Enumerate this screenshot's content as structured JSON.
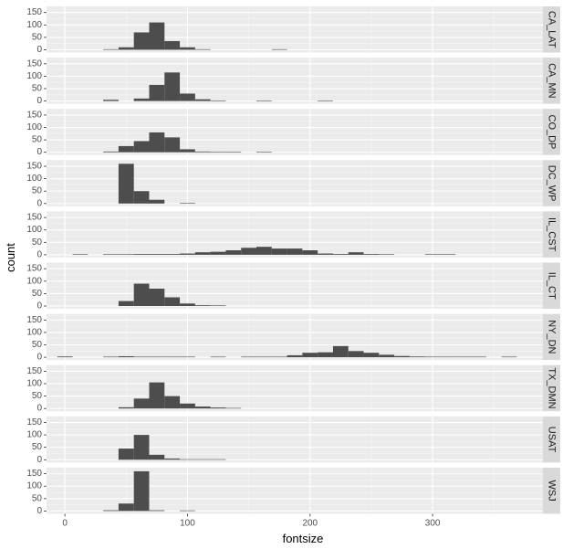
{
  "chart_data": {
    "type": "bar",
    "facet": "wrap-rows",
    "xlabel": "fontsize",
    "ylabel": "count",
    "xlim": [
      -15,
      390
    ],
    "ylim": [
      0,
      160
    ],
    "x_ticks": [
      0,
      100,
      200,
      300
    ],
    "y_ticks": [
      0,
      50,
      100,
      150
    ],
    "bin_width": 12.5,
    "grid": true,
    "bar_color": "#4d4d4d",
    "panel_background": "#ebebeb",
    "strip_background": "#d9d9d9",
    "panels": [
      {
        "strip": "CA_LAT",
        "bins": [
          {
            "x": 37.5,
            "value": 2
          },
          {
            "x": 50,
            "value": 10
          },
          {
            "x": 62.5,
            "value": 70
          },
          {
            "x": 75,
            "value": 110
          },
          {
            "x": 87.5,
            "value": 35
          },
          {
            "x": 100,
            "value": 10
          },
          {
            "x": 112.5,
            "value": 2
          },
          {
            "x": 175,
            "value": 1
          }
        ]
      },
      {
        "strip": "CA_MN",
        "bins": [
          {
            "x": 37.5,
            "value": 5
          },
          {
            "x": 62.5,
            "value": 10
          },
          {
            "x": 75,
            "value": 65
          },
          {
            "x": 87.5,
            "value": 115
          },
          {
            "x": 100,
            "value": 30
          },
          {
            "x": 112.5,
            "value": 7
          },
          {
            "x": 125,
            "value": 2
          },
          {
            "x": 162.5,
            "value": 1
          },
          {
            "x": 212.5,
            "value": 1
          }
        ]
      },
      {
        "strip": "CO_DP",
        "bins": [
          {
            "x": 37.5,
            "value": 3
          },
          {
            "x": 50,
            "value": 25
          },
          {
            "x": 62.5,
            "value": 45
          },
          {
            "x": 75,
            "value": 80
          },
          {
            "x": 87.5,
            "value": 60
          },
          {
            "x": 100,
            "value": 12
          },
          {
            "x": 112.5,
            "value": 3
          },
          {
            "x": 125,
            "value": 2
          },
          {
            "x": 137.5,
            "value": 1
          },
          {
            "x": 162.5,
            "value": 1
          }
        ]
      },
      {
        "strip": "DC_WP",
        "bins": [
          {
            "x": 50,
            "value": 160
          },
          {
            "x": 62.5,
            "value": 50
          },
          {
            "x": 75,
            "value": 15
          },
          {
            "x": 100,
            "value": 1
          }
        ]
      },
      {
        "strip": "IL_CST",
        "bins": [
          {
            "x": 12.5,
            "value": 1
          },
          {
            "x": 37.5,
            "value": 2
          },
          {
            "x": 50,
            "value": 2
          },
          {
            "x": 62.5,
            "value": 3
          },
          {
            "x": 75,
            "value": 3
          },
          {
            "x": 87.5,
            "value": 3
          },
          {
            "x": 100,
            "value": 5
          },
          {
            "x": 112.5,
            "value": 10
          },
          {
            "x": 125,
            "value": 12
          },
          {
            "x": 137.5,
            "value": 18
          },
          {
            "x": 150,
            "value": 28
          },
          {
            "x": 162.5,
            "value": 32
          },
          {
            "x": 175,
            "value": 25
          },
          {
            "x": 187.5,
            "value": 25
          },
          {
            "x": 200,
            "value": 18
          },
          {
            "x": 212.5,
            "value": 5
          },
          {
            "x": 225,
            "value": 3
          },
          {
            "x": 237.5,
            "value": 10
          },
          {
            "x": 250,
            "value": 3
          },
          {
            "x": 262.5,
            "value": 2
          },
          {
            "x": 300,
            "value": 1
          },
          {
            "x": 312.5,
            "value": 1
          }
        ]
      },
      {
        "strip": "IL_CT",
        "bins": [
          {
            "x": 50,
            "value": 20
          },
          {
            "x": 62.5,
            "value": 90
          },
          {
            "x": 75,
            "value": 70
          },
          {
            "x": 87.5,
            "value": 35
          },
          {
            "x": 100,
            "value": 10
          },
          {
            "x": 112.5,
            "value": 3
          },
          {
            "x": 125,
            "value": 1
          }
        ]
      },
      {
        "strip": "NY_DN",
        "bins": [
          {
            "x": 0,
            "value": 3
          },
          {
            "x": 37.5,
            "value": 2
          },
          {
            "x": 50,
            "value": 4
          },
          {
            "x": 62.5,
            "value": 2
          },
          {
            "x": 75,
            "value": 2
          },
          {
            "x": 87.5,
            "value": 2
          },
          {
            "x": 100,
            "value": 2
          },
          {
            "x": 125,
            "value": 2
          },
          {
            "x": 150,
            "value": 2
          },
          {
            "x": 162.5,
            "value": 2
          },
          {
            "x": 175,
            "value": 2
          },
          {
            "x": 187.5,
            "value": 8
          },
          {
            "x": 200,
            "value": 18
          },
          {
            "x": 212.5,
            "value": 20
          },
          {
            "x": 225,
            "value": 45
          },
          {
            "x": 237.5,
            "value": 25
          },
          {
            "x": 250,
            "value": 18
          },
          {
            "x": 262.5,
            "value": 10
          },
          {
            "x": 275,
            "value": 5
          },
          {
            "x": 287.5,
            "value": 3
          },
          {
            "x": 300,
            "value": 2
          },
          {
            "x": 312.5,
            "value": 1
          },
          {
            "x": 325,
            "value": 2
          },
          {
            "x": 337.5,
            "value": 2
          },
          {
            "x": 362.5,
            "value": 1
          }
        ]
      },
      {
        "strip": "TX_DMN",
        "bins": [
          {
            "x": 50,
            "value": 5
          },
          {
            "x": 62.5,
            "value": 40
          },
          {
            "x": 75,
            "value": 105
          },
          {
            "x": 87.5,
            "value": 50
          },
          {
            "x": 100,
            "value": 20
          },
          {
            "x": 112.5,
            "value": 8
          },
          {
            "x": 125,
            "value": 4
          },
          {
            "x": 137.5,
            "value": 1
          }
        ]
      },
      {
        "strip": "USAT",
        "bins": [
          {
            "x": 50,
            "value": 45
          },
          {
            "x": 62.5,
            "value": 100
          },
          {
            "x": 75,
            "value": 20
          },
          {
            "x": 87.5,
            "value": 5
          },
          {
            "x": 100,
            "value": 2
          },
          {
            "x": 112.5,
            "value": 2
          },
          {
            "x": 125,
            "value": 2
          }
        ]
      },
      {
        "strip": "WSJ",
        "bins": [
          {
            "x": 37.5,
            "value": 3
          },
          {
            "x": 50,
            "value": 30
          },
          {
            "x": 62.5,
            "value": 160
          },
          {
            "x": 75,
            "value": 3
          },
          {
            "x": 100,
            "value": 2
          }
        ]
      }
    ]
  }
}
